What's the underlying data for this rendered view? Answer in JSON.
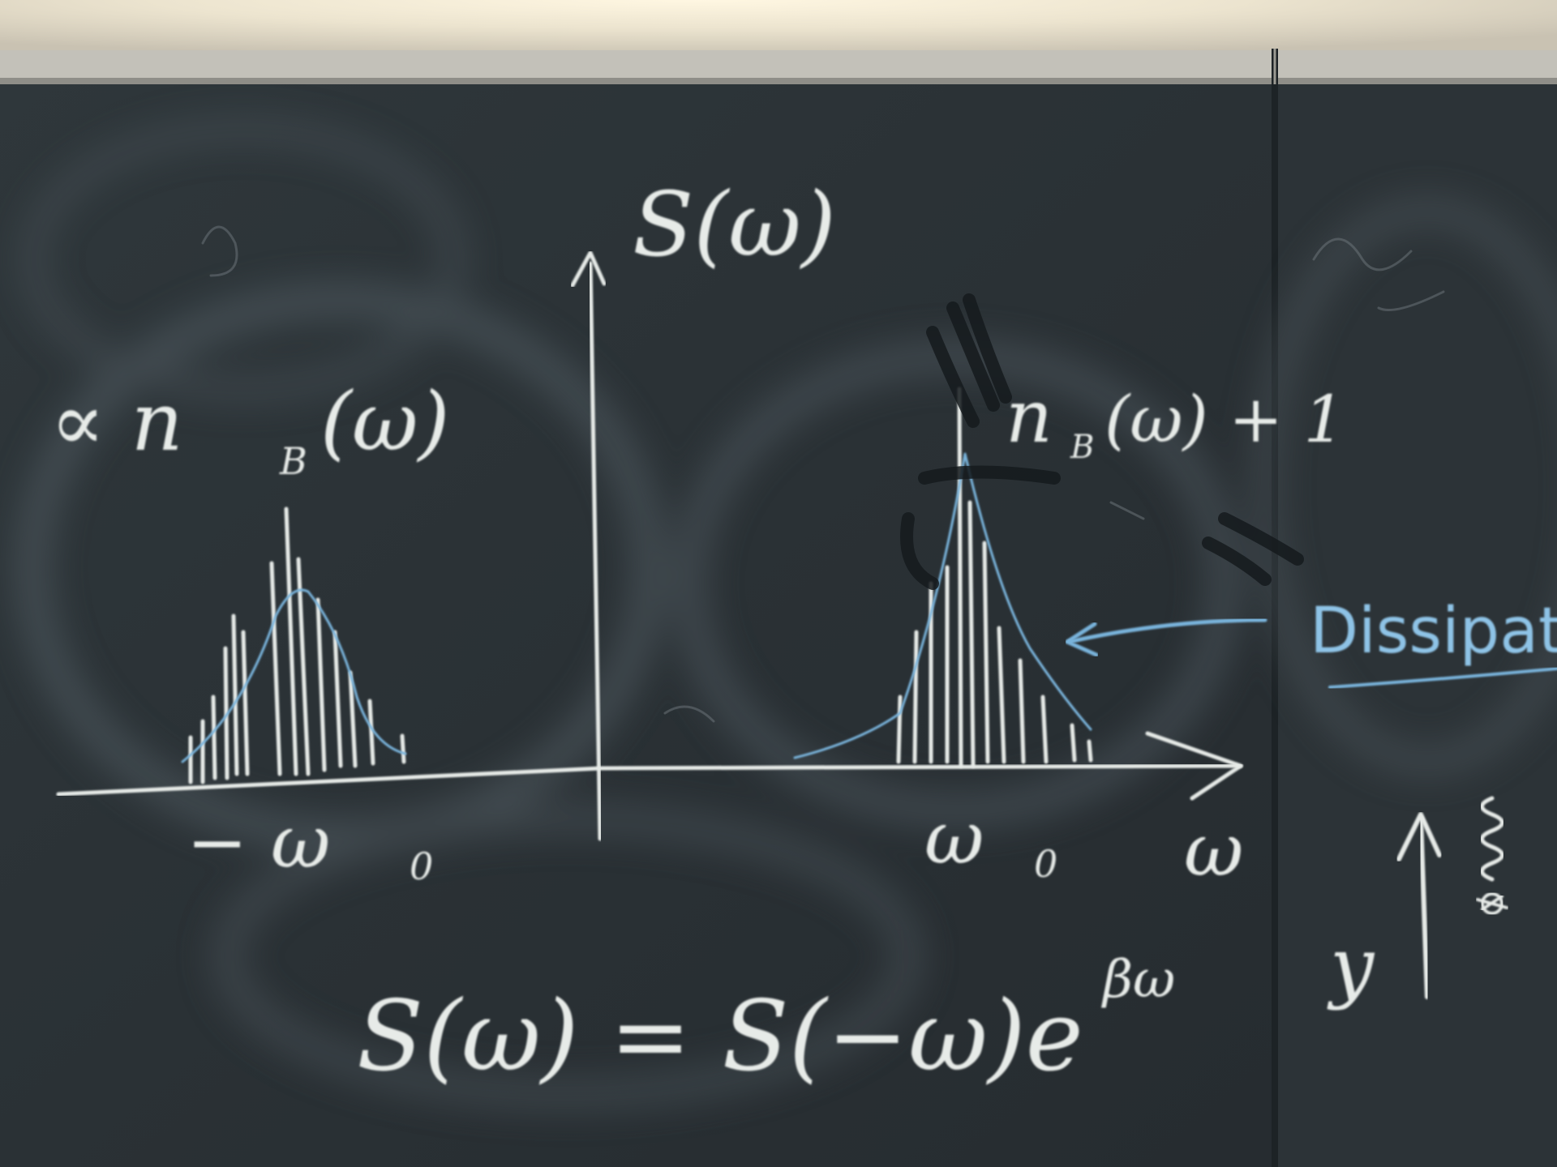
{
  "board": {
    "plot_label": "S(ω)",
    "left_peak_label": "∝ n",
    "left_peak_sub": "B",
    "left_peak_arg": "(ω)",
    "right_peak_label": "n",
    "right_peak_sub": "B",
    "right_peak_arg": "(ω) + 1",
    "neg_freq_label": "− ω",
    "neg_freq_sub": "0",
    "pos_freq_label": "ω",
    "pos_freq_sub": "0",
    "axis_label": "ω",
    "relation_lhs": "S(ω) = S(−ω)e",
    "relation_exp": "βω",
    "side_note": "Dissipat",
    "side_y_label": "y"
  },
  "colors": {
    "board": "#2b3236",
    "chalk_white": "#e7ebe8",
    "chalk_blue": "#8ec3e6",
    "ceiling_light": "#f6efd9"
  }
}
